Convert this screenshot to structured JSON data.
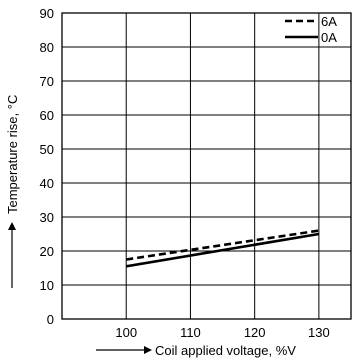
{
  "chart_data": {
    "type": "line",
    "xlabel": "Coil applied voltage, %V",
    "ylabel": "Temperature rise, °C",
    "xlim": [
      90,
      135
    ],
    "ylim": [
      0,
      90
    ],
    "x_ticks": [
      100,
      110,
      120,
      130
    ],
    "y_ticks": [
      0,
      10,
      20,
      30,
      40,
      50,
      60,
      70,
      80,
      90
    ],
    "grid": true,
    "legend_position": "top-right",
    "series": [
      {
        "name": "6A",
        "style": "dashed",
        "x": [
          100,
          130
        ],
        "y": [
          17.5,
          26
        ]
      },
      {
        "name": "0A",
        "style": "solid",
        "x": [
          100,
          130
        ],
        "y": [
          15.5,
          25
        ]
      }
    ]
  },
  "colors": {
    "line": "#000000",
    "grid": "#000000",
    "background": "#ffffff"
  }
}
